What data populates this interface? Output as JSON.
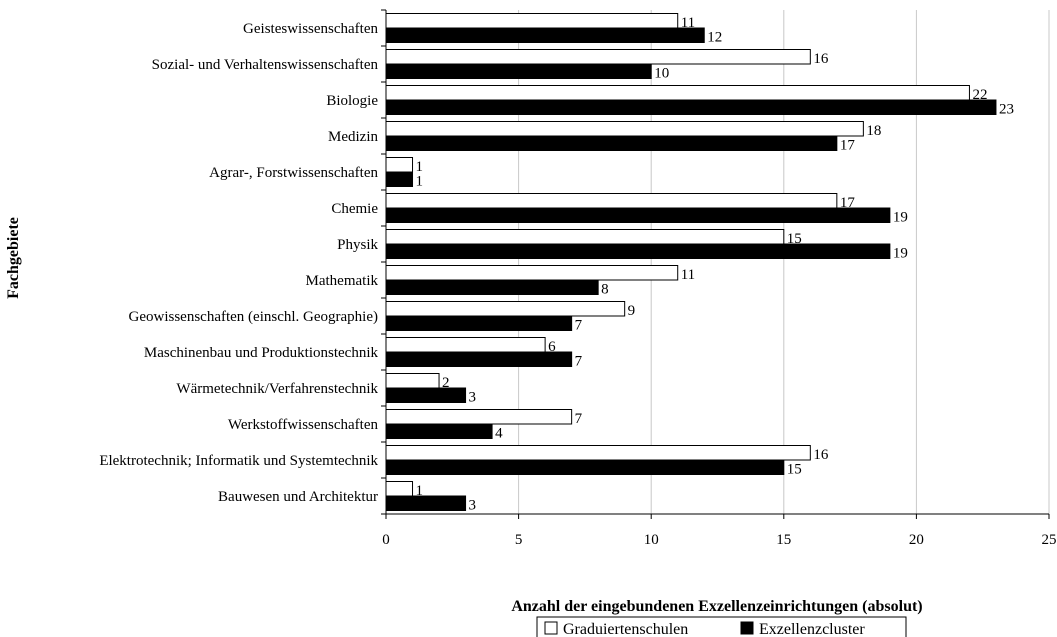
{
  "chart_data": {
    "type": "bar",
    "orientation": "horizontal",
    "title": "",
    "xlabel": "Anzahl der eingebundenen Exzellenzeinrichtungen (absolut)",
    "ylabel": "Fachgebiete",
    "xlim": [
      0,
      25
    ],
    "xticks": [
      "0",
      "5",
      "10",
      "15",
      "20",
      "25"
    ],
    "grid": "vertical",
    "legend_position": "bottom-right",
    "categories": [
      "Geisteswissenschaften",
      "Sozial- und Verhaltenswissenschaften",
      "Biologie",
      "Medizin",
      "Agrar-, Forstwissenschaften",
      "Chemie",
      "Physik",
      "Mathematik",
      "Geowissenschaften (einschl. Geographie)",
      "Maschinenbau und Produktionstechnik",
      "Wärmetechnik/Verfahrenstechnik",
      "Werkstoffwissenschaften",
      "Elektrotechnik; Informatik und Systemtechnik",
      "Bauwesen und Architektur"
    ],
    "series": [
      {
        "name": "Graduiertenschulen",
        "color": "#ffffff",
        "values": [
          11,
          16,
          22,
          18,
          1,
          17,
          15,
          11,
          9,
          6,
          2,
          7,
          16,
          1
        ]
      },
      {
        "name": "Exzellenzcluster",
        "color": "#000000",
        "values": [
          12,
          10,
          23,
          17,
          1,
          19,
          19,
          8,
          7,
          7,
          3,
          4,
          15,
          3
        ]
      }
    ],
    "data_labels": true
  }
}
